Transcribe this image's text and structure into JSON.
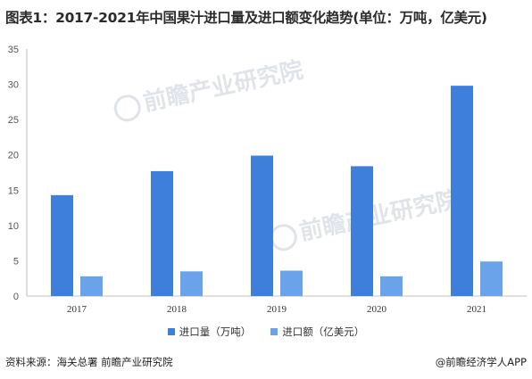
{
  "title": "图表1：2017-2021年中国果汁进口量及进口额变化趋势(单位：万吨，亿美元)",
  "watermark_text": "前瞻产业研究院",
  "colors": {
    "series1": "#3e7fdc",
    "series2": "#6aa3ea",
    "axis": "#bfbfbf",
    "text": "#333333"
  },
  "chart_data": {
    "type": "bar",
    "categories": [
      "2017",
      "2018",
      "2019",
      "2020",
      "2021"
    ],
    "series": [
      {
        "name": "进口量（万吨）",
        "values": [
          14.3,
          17.7,
          19.9,
          18.4,
          29.8
        ]
      },
      {
        "name": "进口额（亿美元）",
        "values": [
          2.8,
          3.5,
          3.6,
          2.8,
          4.9
        ]
      }
    ],
    "yticks": [
      "0",
      "5",
      "10",
      "15",
      "20",
      "25",
      "30",
      "35"
    ],
    "ylim": [
      0,
      35
    ],
    "grid": false,
    "legend_position": "bottom"
  },
  "footer": {
    "source": "资料来源：海关总署 前瞻产业研究院",
    "brand": "@前瞻经济学人APP"
  }
}
